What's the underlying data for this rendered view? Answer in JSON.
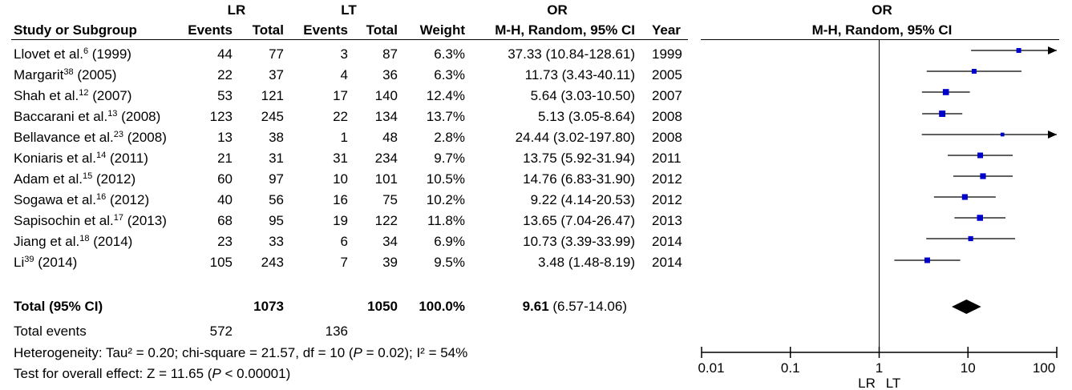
{
  "header": {
    "group_lr": "LR",
    "group_lt": "LT",
    "group_or": "OR",
    "col_study": "Study or Subgroup",
    "col_events_lr": "Events",
    "col_total_lr": "Total",
    "col_events_lt": "Events",
    "col_total_lt": "Total",
    "col_weight": "Weight",
    "col_method": "M-H, Random, 95% CI",
    "col_year": "Year",
    "plot_title": "OR",
    "plot_method": "M-H, Random, 95% CI"
  },
  "studies": [
    {
      "name": "Llovet et al.",
      "ref": "6",
      "suffix": " (1999)",
      "lr_events": "44",
      "lr_total": "77",
      "lt_events": "3",
      "lt_total": "87",
      "weight": "6.3%",
      "ci_text": "37.33 (10.84-128.61)",
      "year": "1999"
    },
    {
      "name": "Margarit",
      "ref": "38",
      "suffix": " (2005)",
      "lr_events": "22",
      "lr_total": "37",
      "lt_events": "4",
      "lt_total": "36",
      "weight": "6.3%",
      "ci_text": "11.73 (3.43-40.11)",
      "year": "2005"
    },
    {
      "name": "Shah et al.",
      "ref": "12",
      "suffix": " (2007)",
      "lr_events": "53",
      "lr_total": "121",
      "lt_events": "17",
      "lt_total": "140",
      "weight": "12.4%",
      "ci_text": "5.64 (3.03-10.50)",
      "year": "2007"
    },
    {
      "name": "Baccarani et al.",
      "ref": "13",
      "suffix": " (2008)",
      "lr_events": "123",
      "lr_total": "245",
      "lt_events": "22",
      "lt_total": "134",
      "weight": "13.7%",
      "ci_text": "5.13 (3.05-8.64)",
      "year": "2008"
    },
    {
      "name": "Bellavance et al.",
      "ref": "23",
      "suffix": " (2008)",
      "lr_events": "13",
      "lr_total": "38",
      "lt_events": "1",
      "lt_total": "48",
      "weight": "2.8%",
      "ci_text": "24.44 (3.02-197.80)",
      "year": "2008"
    },
    {
      "name": "Koniaris et al.",
      "ref": "14",
      "suffix": " (2011)",
      "lr_events": "21",
      "lr_total": "31",
      "lt_events": "31",
      "lt_total": "234",
      "weight": "9.7%",
      "ci_text": "13.75 (5.92-31.94)",
      "year": "2011"
    },
    {
      "name": "Adam et al.",
      "ref": "15",
      "suffix": " (2012)",
      "lr_events": "60",
      "lr_total": "97",
      "lt_events": "10",
      "lt_total": "101",
      "weight": "10.5%",
      "ci_text": "14.76 (6.83-31.90)",
      "year": "2012"
    },
    {
      "name": "Sogawa et al.",
      "ref": "16",
      "suffix": " (2012)",
      "lr_events": "40",
      "lr_total": "56",
      "lt_events": "16",
      "lt_total": "75",
      "weight": "10.2%",
      "ci_text": "9.22 (4.14-20.53)",
      "year": "2012"
    },
    {
      "name": "Sapisochin et al.",
      "ref": "17",
      "suffix": " (2013)",
      "lr_events": "68",
      "lr_total": "95",
      "lt_events": "19",
      "lt_total": "122",
      "weight": "11.8%",
      "ci_text": "13.65 (7.04-26.47)",
      "year": "2013"
    },
    {
      "name": "Jiang et al.",
      "ref": "18",
      "suffix": " (2014)",
      "lr_events": "23",
      "lr_total": "33",
      "lt_events": "6",
      "lt_total": "34",
      "weight": "6.9%",
      "ci_text": "10.73 (3.39-33.99)",
      "year": "2014"
    },
    {
      "name": "Li",
      "ref": "39",
      "suffix": " (2014)",
      "lr_events": "105",
      "lr_total": "243",
      "lt_events": "7",
      "lt_total": "39",
      "weight": "9.5%",
      "ci_text": "3.48 (1.48-8.19)",
      "year": "2014"
    }
  ],
  "total": {
    "label": "Total (95% CI)",
    "lr_total": "1073",
    "lt_total": "1050",
    "weight": "100.0%",
    "or_value": "9.61",
    "or_ci": " (6.57-14.06)"
  },
  "events": {
    "label": "Total events",
    "lr": "572",
    "lt": "136"
  },
  "heterogeneity": {
    "prefix": "Heterogeneity: Tau² = 0.20; chi-square = 21.57, df = 10 (",
    "p_label": "P",
    "middle": " = 0.02); I² = 54%"
  },
  "overall": {
    "prefix": "Test for overall effect: Z = 11.65 (",
    "p_label": "P",
    "suffix": " < 0.00001)"
  },
  "axis": {
    "ticks": [
      "0.01",
      "0.1",
      "1",
      "10",
      "100"
    ],
    "favours_left": "LR",
    "favours_right": "LT"
  },
  "colors": {
    "marker": "#0000cc",
    "line": "#000000"
  },
  "chart_data": {
    "type": "scatter",
    "title": "OR",
    "subtitle": "M-H, Random, 95% CI",
    "xscale": "log",
    "xlim": [
      0.01,
      100
    ],
    "xticks": [
      0.01,
      0.1,
      1,
      10,
      100
    ],
    "reference_line": 1,
    "points": [
      {
        "study": "Llovet et al. (1999)",
        "or": 37.33,
        "lo": 10.84,
        "hi": 128.61,
        "weight": 6.3
      },
      {
        "study": "Margarit (2005)",
        "or": 11.73,
        "lo": 3.43,
        "hi": 40.11,
        "weight": 6.3
      },
      {
        "study": "Shah et al. (2007)",
        "or": 5.64,
        "lo": 3.03,
        "hi": 10.5,
        "weight": 12.4
      },
      {
        "study": "Baccarani et al. (2008)",
        "or": 5.13,
        "lo": 3.05,
        "hi": 8.64,
        "weight": 13.7
      },
      {
        "study": "Bellavance et al. (2008)",
        "or": 24.44,
        "lo": 3.02,
        "hi": 197.8,
        "weight": 2.8
      },
      {
        "study": "Koniaris et al. (2011)",
        "or": 13.75,
        "lo": 5.92,
        "hi": 31.94,
        "weight": 9.7
      },
      {
        "study": "Adam et al. (2012)",
        "or": 14.76,
        "lo": 6.83,
        "hi": 31.9,
        "weight": 10.5
      },
      {
        "study": "Sogawa et al. (2012)",
        "or": 9.22,
        "lo": 4.14,
        "hi": 20.53,
        "weight": 10.2
      },
      {
        "study": "Sapisochin et al. (2013)",
        "or": 13.65,
        "lo": 7.04,
        "hi": 26.47,
        "weight": 11.8
      },
      {
        "study": "Jiang et al. (2014)",
        "or": 10.73,
        "lo": 3.39,
        "hi": 33.99,
        "weight": 6.9
      },
      {
        "study": "Li (2014)",
        "or": 3.48,
        "lo": 1.48,
        "hi": 8.19,
        "weight": 9.5
      }
    ],
    "pooled": {
      "or": 9.61,
      "lo": 6.57,
      "hi": 14.06
    }
  }
}
